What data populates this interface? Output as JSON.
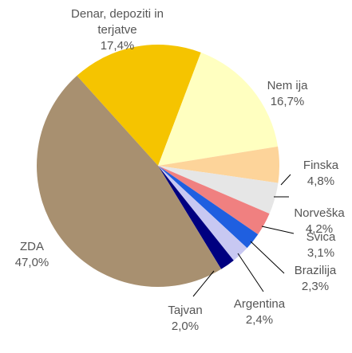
{
  "chart_data": {
    "type": "pie",
    "categories": [
      "Denar, depoziti in terjatve",
      "Nem ija",
      "Finska",
      "Norveška",
      "Švica",
      "Brazilija",
      "Argentina",
      "Tajvan",
      "ZDA"
    ],
    "values": [
      17.4,
      16.7,
      4.8,
      4.2,
      3.1,
      2.3,
      2.4,
      2.0,
      47.0
    ],
    "value_labels": [
      "17,4%",
      "16,7%",
      "4,8%",
      "4,2%",
      "3,1%",
      "2,3%",
      "2,4%",
      "2,0%",
      "47,0%"
    ],
    "colors": [
      "#f5c400",
      "#ffffc0",
      "#fdd49a",
      "#e6e6e6",
      "#f08080",
      "#1f5fe0",
      "#c8c8f2",
      "#000080",
      "#a89070"
    ]
  }
}
